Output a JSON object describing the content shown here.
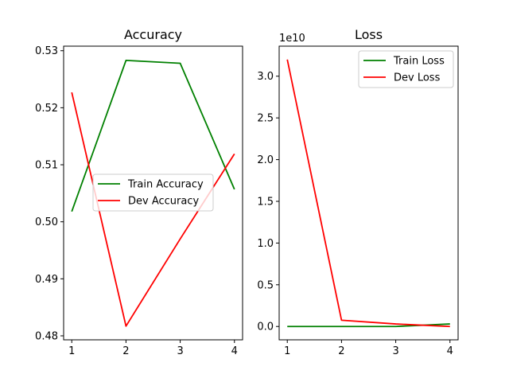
{
  "chart_data": [
    {
      "type": "line",
      "title": "Accuracy",
      "xlabel": "",
      "ylabel": "",
      "x": [
        1,
        2,
        3,
        4
      ],
      "xticks": [
        "1",
        "2",
        "3",
        "4"
      ],
      "xlim": [
        0.85,
        4.15
      ],
      "ylim": [
        0.4793,
        0.5308
      ],
      "yticks": [
        "0.48",
        "0.49",
        "0.50",
        "0.51",
        "0.52",
        "0.53"
      ],
      "ytick_values": [
        0.48,
        0.49,
        0.5,
        0.51,
        0.52,
        0.53
      ],
      "offset_text": "",
      "series": [
        {
          "name": "Train Accuracy",
          "color": "#008000",
          "values": [
            0.5018,
            0.5283,
            0.5278,
            0.5057
          ]
        },
        {
          "name": "Dev Accuracy",
          "color": "#ff0000",
          "values": [
            0.5227,
            0.4817,
            0.497,
            0.5119
          ]
        }
      ],
      "legend": "center-right",
      "grid": false
    },
    {
      "type": "line",
      "title": "Loss",
      "xlabel": "",
      "ylabel": "",
      "x": [
        1,
        2,
        3,
        4
      ],
      "xticks": [
        "1",
        "2",
        "3",
        "4"
      ],
      "xlim": [
        0.85,
        4.15
      ],
      "ylim": [
        -0.16,
        3.36
      ],
      "yticks": [
        "0.0",
        "0.5",
        "1.0",
        "1.5",
        "2.0",
        "2.5",
        "3.0"
      ],
      "ytick_values": [
        0.0,
        0.5,
        1.0,
        1.5,
        2.0,
        2.5,
        3.0
      ],
      "offset_text": "1e10",
      "series": [
        {
          "name": "Train Loss",
          "color": "#008000",
          "values": [
            0.0,
            0.0,
            0.0,
            0.03
          ]
        },
        {
          "name": "Dev Loss",
          "color": "#ff0000",
          "values": [
            3.2,
            0.075,
            0.03,
            0.0
          ]
        }
      ],
      "legend": "top-right",
      "grid": false
    }
  ]
}
